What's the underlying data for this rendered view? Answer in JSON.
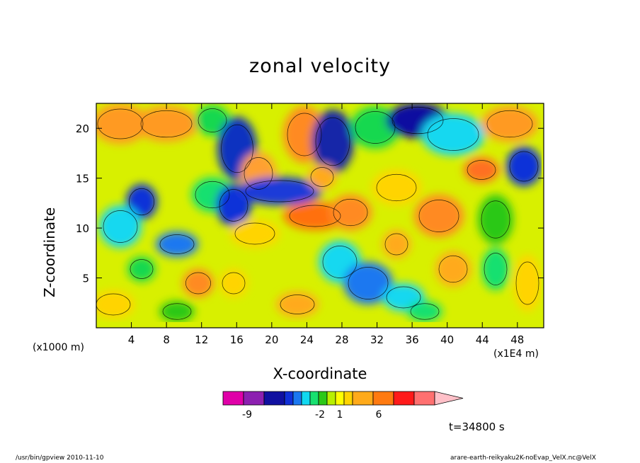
{
  "chart_data": {
    "type": "heatmap",
    "title": "zonal velocity",
    "xlabel": "X-coordinate",
    "ylabel": "Z-coordinate",
    "x_unit": "(x1E4 m)",
    "y_unit": "(x1000 m)",
    "xlim": [
      0,
      51
    ],
    "ylim": [
      0,
      22.5
    ],
    "x_ticks": [
      "4",
      "8",
      "12",
      "16",
      "20",
      "24",
      "28",
      "32",
      "36",
      "40",
      "44",
      "48"
    ],
    "y_ticks": [
      "5",
      "10",
      "15",
      "20"
    ],
    "x_tick_values": [
      4,
      8,
      12,
      16,
      20,
      24,
      28,
      32,
      36,
      40,
      44,
      48
    ],
    "y_tick_values": [
      5,
      10,
      15,
      20
    ],
    "colorbar": {
      "colors": [
        "#e000a8",
        "#8c20b0",
        "#1010a0",
        "#1030d8",
        "#1b78f0",
        "#12d8f0",
        "#18e070",
        "#2cc818",
        "#b8f000",
        "#ffff00",
        "#ffd400",
        "#ffaa1a",
        "#ff7a10",
        "#ff1a1a",
        "#ff7070",
        "#ffc0c8"
      ],
      "tick_labels": [
        "-9",
        "-2",
        "1",
        "6"
      ],
      "tick_values": [
        -9,
        -2,
        1,
        6
      ]
    },
    "time_label": "t=34800 s"
  },
  "footer": {
    "left": "/usr/bin/gpview   2010-11-10",
    "right": "arare-earth-reikyaku2K-noEvap_VelX.nc@VelX"
  }
}
